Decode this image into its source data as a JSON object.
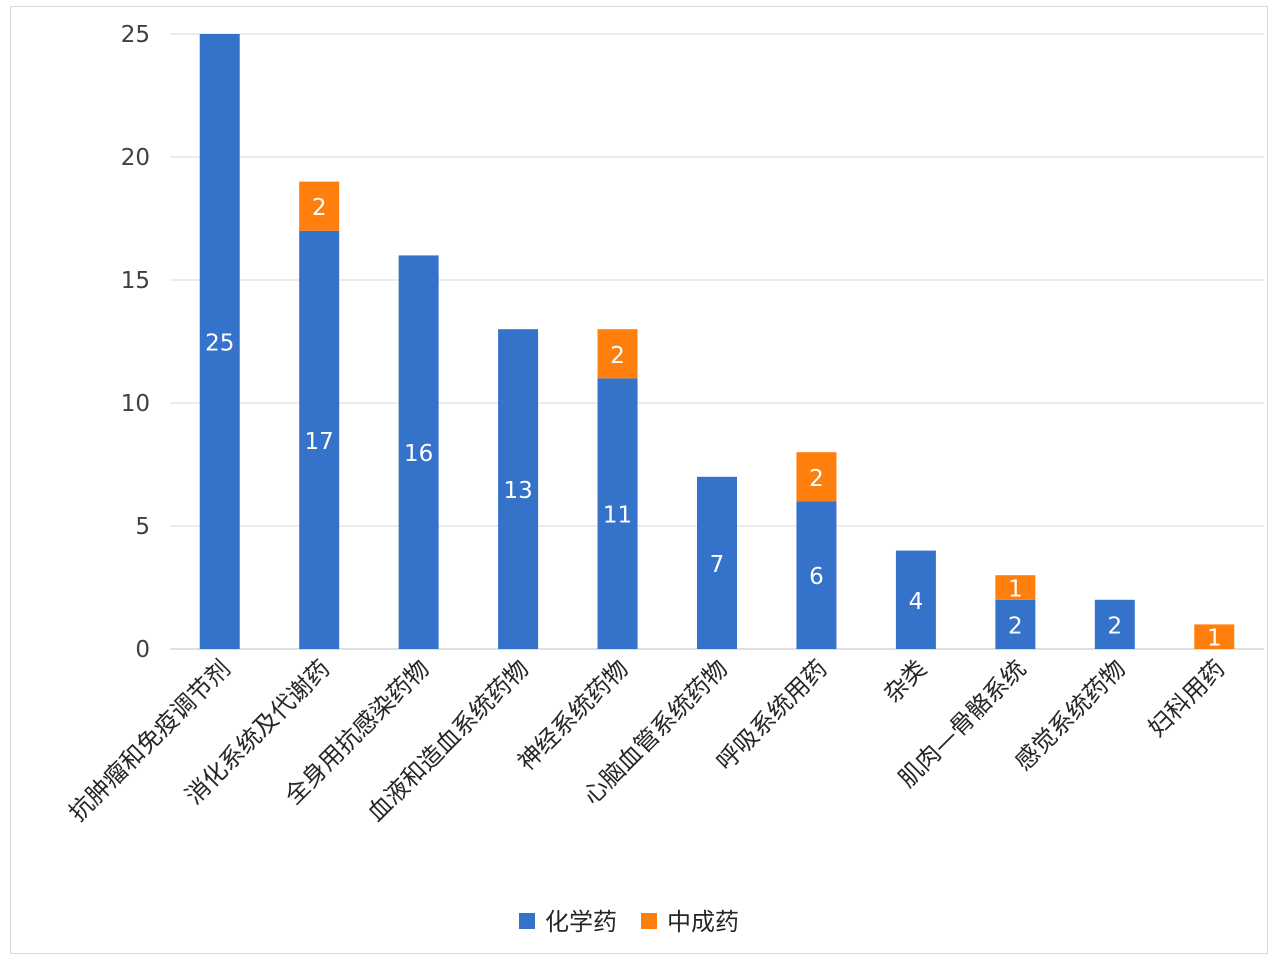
{
  "chart_data": {
    "type": "bar",
    "stacked": true,
    "categories": [
      "抗肿瘤和免疫调节剂",
      "消化系统及代谢药",
      "全身用抗感染药物",
      "血液和造血系统药物",
      "神经系统药物",
      "心脑血管系统药物",
      "呼吸系统用药",
      "杂类",
      "肌肉—骨骼系统",
      "感觉系统药物",
      "妇科用药"
    ],
    "series": [
      {
        "name": "化学药",
        "color": "#3572C9",
        "values": [
          25,
          17,
          16,
          13,
          11,
          7,
          6,
          4,
          2,
          2,
          0
        ]
      },
      {
        "name": "中成药",
        "color": "#FF7F0E",
        "values": [
          0,
          2,
          0,
          0,
          2,
          0,
          2,
          0,
          1,
          0,
          1
        ]
      }
    ],
    "yticks": [
      "0",
      "5",
      "10",
      "15",
      "20",
      "25"
    ],
    "ylim": [
      0,
      25
    ],
    "grid": true,
    "legend": "bottom",
    "data_labels": true
  }
}
